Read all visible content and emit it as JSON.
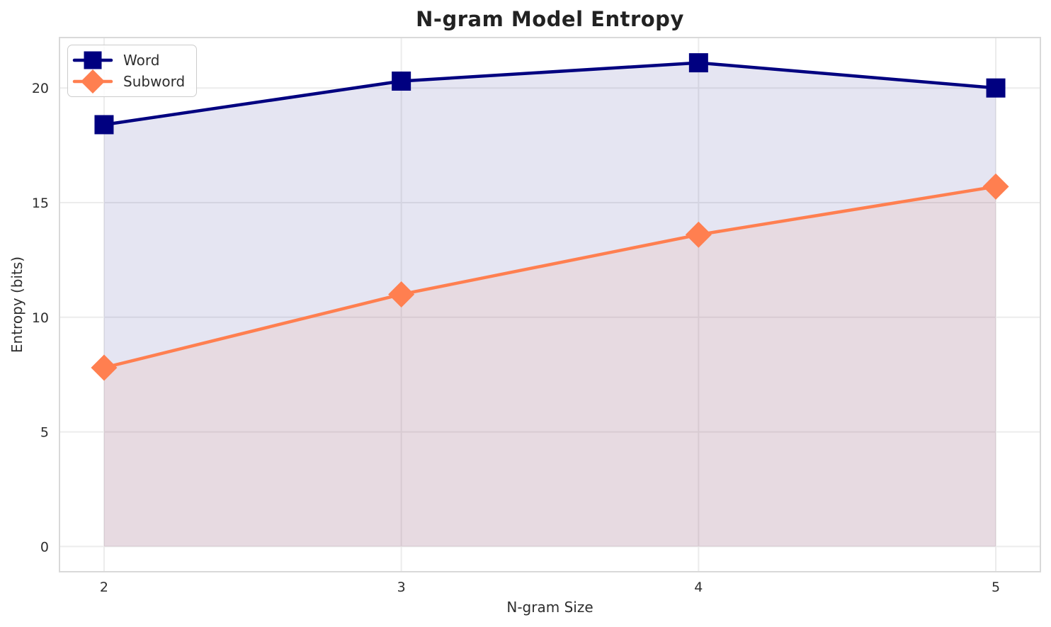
{
  "chart_data": {
    "type": "line",
    "title": "N-gram Model Entropy",
    "xlabel": "N-gram Size",
    "ylabel": "Entropy (bits)",
    "x": [
      2,
      3,
      4,
      5
    ],
    "series": [
      {
        "name": "Word",
        "marker": "square",
        "color": "#000080",
        "fill_opacity": 0.1,
        "values": [
          18.4,
          20.3,
          21.1,
          20.0
        ]
      },
      {
        "name": "Subword",
        "marker": "diamond",
        "color": "#ff7f50",
        "fill_opacity": 0.1,
        "values": [
          7.8,
          11.0,
          13.6,
          15.7
        ]
      }
    ],
    "xticks": [
      2,
      3,
      4,
      5
    ],
    "yticks": [
      0,
      5,
      10,
      15,
      20
    ],
    "xlim": [
      1.85,
      5.15
    ],
    "ylim": [
      -1.1,
      22.2
    ],
    "grid": true,
    "legend_position": "upper left",
    "area_baseline": 0
  },
  "style": {
    "grid_color": "#ececec",
    "spine_color": "#d9d9d9",
    "text_color": "#2e2e2e",
    "title_color": "#222222",
    "background": "#ffffff",
    "legend_border": "#cccccc",
    "line_width": 4.5
  }
}
